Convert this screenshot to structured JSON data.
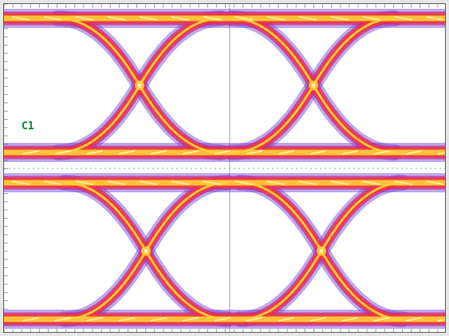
{
  "display": {
    "channel_label": "C1",
    "trace_colors": {
      "background": "#ffffff",
      "sparse": "#6a3fd8",
      "low": "#d2287c",
      "mid": "#f03a3a",
      "high": "#ffd23a",
      "peak": "#fff5a8"
    },
    "grid_color": "#9aa0b0",
    "label_color": "#0a8a3a"
  }
}
